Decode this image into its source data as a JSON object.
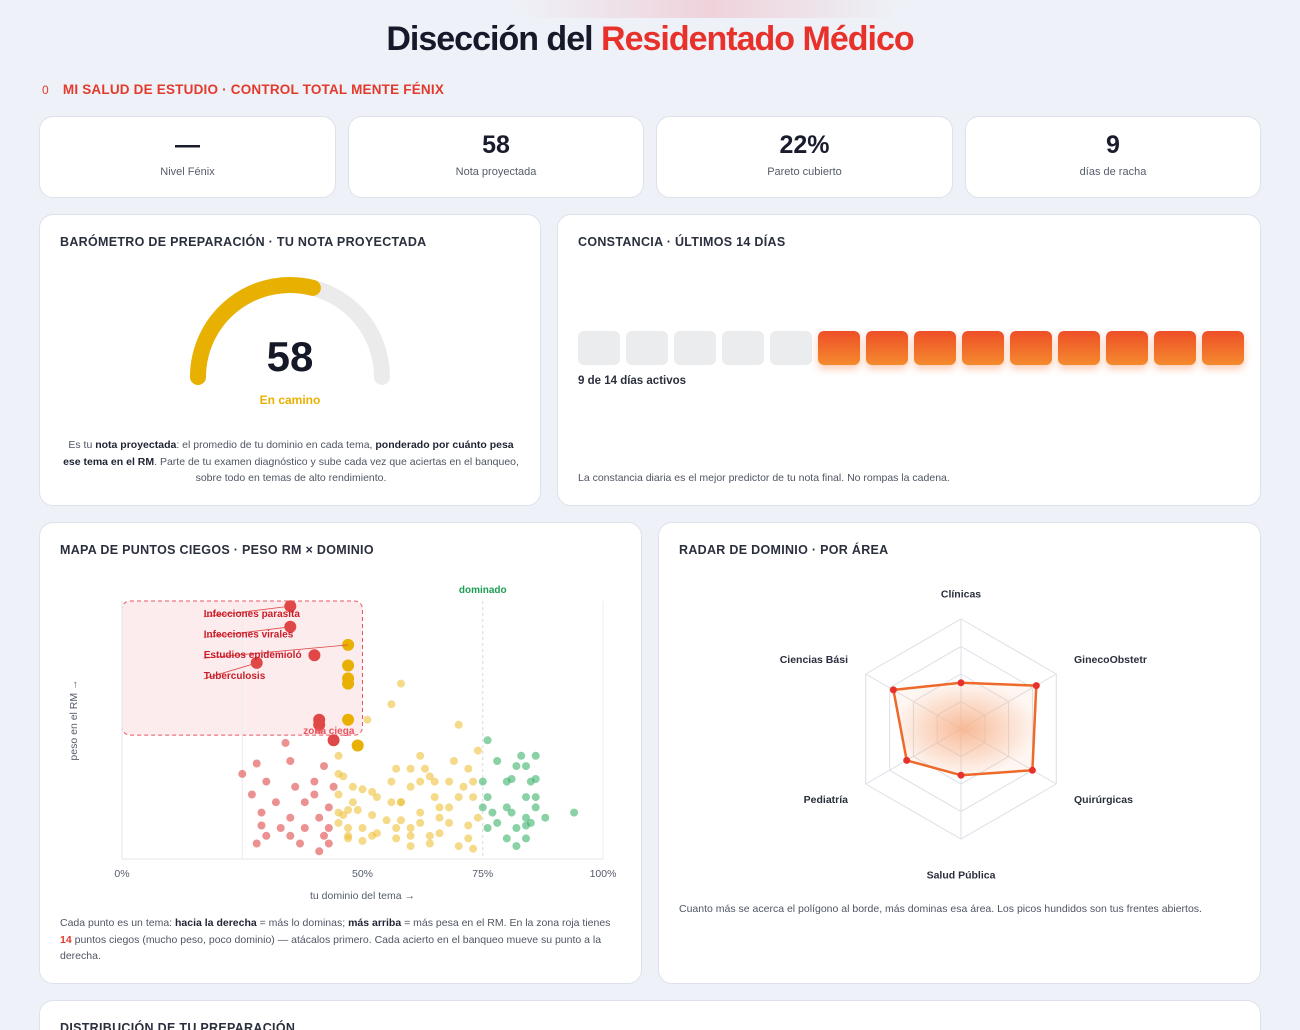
{
  "header": {
    "title_main": "Disección del",
    "title_accent": "Residentado Médico"
  },
  "subheader": {
    "badge": "0",
    "text": "MI SALUD DE ESTUDIO · CONTROL TOTAL MENTE FÉNIX"
  },
  "stats": [
    {
      "value": "—",
      "label": "Nivel Fénix"
    },
    {
      "value": "58",
      "label": "Nota proyectada"
    },
    {
      "value": "22%",
      "label": "Pareto cubierto"
    },
    {
      "value": "9",
      "label": "días de racha"
    }
  ],
  "barometer": {
    "title": "BARÓMETRO DE PREPARACIÓN · TU NOTA PROYECTADA",
    "value": "58",
    "gauge_fraction": 0.58,
    "status": "En camino",
    "desc_1": "Es tu ",
    "desc_b1": "nota proyectada",
    "desc_2": ": el promedio de tu dominio en cada tema, ",
    "desc_b2": "ponderado por cuánto pesa ese tema en el RM",
    "desc_3": ". Parte de tu examen diagnóstico y sube cada vez que aciertas en el banqueo, sobre todo en temas de alto rendimiento.",
    "colors": {
      "gauge": "#e8b000",
      "track": "#ebebeb"
    }
  },
  "constancy": {
    "title": "CONSTANCIA · ÚLTIMOS 14 DÍAS",
    "days": [
      0,
      0,
      0,
      0,
      0,
      1,
      1,
      1,
      1,
      1,
      1,
      1,
      1,
      1
    ],
    "active_text": "9 de 14 días activos",
    "footer": "La constancia diaria es el mejor predictor de tu nota final. No rompas la cadena."
  },
  "blindspots": {
    "title": "MAPA DE PUNTOS CIEGOS · PESO RM × DOMINIO",
    "dominated_label": "dominado",
    "zone_label": "zona ciega",
    "desc_1": "Cada punto es un tema: ",
    "desc_b1": "hacia la derecha",
    "desc_2": " = más lo dominas; ",
    "desc_b2": "más arriba",
    "desc_3": " = más pesa en el RM. En la zona roja tienes ",
    "desc_count": "14",
    "desc_4": " puntos ciegos (mucho peso, poco dominio) — atácalos primero. Cada acierto en el banqueo mueve su punto a la derecha.",
    "chart_data": {
      "type": "scatter",
      "xlabel": "tu dominio del tema →",
      "ylabel": "peso en el RM →",
      "xlim": [
        0,
        100
      ],
      "x_ticks": [
        "0%",
        "50%",
        "75%",
        "100%"
      ],
      "x_tick_values": [
        0,
        50,
        75,
        100
      ],
      "annotations": [
        "Infecciones parasita",
        "Infecciones virales",
        "Estudios epidemioló",
        "Tuberculosis"
      ],
      "colors": {
        "low": "#e04848",
        "mid": "#efc13a",
        "high": "#3cb46a",
        "zone": "#e85560"
      },
      "highlighted": [
        [
          35,
          98
        ],
        [
          35,
          90
        ],
        [
          47,
          83
        ],
        [
          40,
          79
        ],
        [
          28,
          76
        ],
        [
          47,
          75
        ],
        [
          47,
          70
        ],
        [
          47,
          68
        ],
        [
          41,
          54
        ],
        [
          41,
          52
        ],
        [
          47,
          54
        ],
        [
          44,
          46
        ],
        [
          49,
          44
        ]
      ],
      "points": [
        [
          58,
          68
        ],
        [
          56,
          60
        ],
        [
          51,
          54
        ],
        [
          70,
          52
        ],
        [
          76,
          46
        ],
        [
          74,
          42
        ],
        [
          62,
          40
        ],
        [
          83,
          40
        ],
        [
          86,
          40
        ],
        [
          69,
          38
        ],
        [
          78,
          38
        ],
        [
          82,
          36
        ],
        [
          84,
          36
        ],
        [
          57,
          35
        ],
        [
          60,
          35
        ],
        [
          63,
          35
        ],
        [
          72,
          35
        ],
        [
          64,
          32
        ],
        [
          65,
          30
        ],
        [
          68,
          30
        ],
        [
          62,
          30
        ],
        [
          56,
          30
        ],
        [
          81,
          31
        ],
        [
          86,
          31
        ],
        [
          73,
          30
        ],
        [
          75,
          30
        ],
        [
          80,
          30
        ],
        [
          85,
          30
        ],
        [
          60,
          28
        ],
        [
          71,
          28
        ],
        [
          50,
          27
        ],
        [
          52,
          26
        ],
        [
          53,
          24
        ],
        [
          56,
          22
        ],
        [
          58,
          22
        ],
        [
          65,
          24
        ],
        [
          70,
          24
        ],
        [
          73,
          24
        ],
        [
          76,
          24
        ],
        [
          84,
          24
        ],
        [
          86,
          24
        ],
        [
          48,
          22
        ],
        [
          58,
          22
        ],
        [
          66,
          20
        ],
        [
          68,
          20
        ],
        [
          75,
          20
        ],
        [
          80,
          20
        ],
        [
          86,
          20
        ],
        [
          47,
          19
        ],
        [
          49,
          19
        ],
        [
          62,
          18
        ],
        [
          66,
          16
        ],
        [
          74,
          16
        ],
        [
          77,
          18
        ],
        [
          81,
          18
        ],
        [
          84,
          16
        ],
        [
          88,
          16
        ],
        [
          94,
          18
        ],
        [
          46,
          17
        ],
        [
          52,
          17
        ],
        [
          55,
          15
        ],
        [
          58,
          15
        ],
        [
          62,
          14
        ],
        [
          68,
          14
        ],
        [
          72,
          13
        ],
        [
          78,
          14
        ],
        [
          84,
          13
        ],
        [
          85,
          14
        ],
        [
          47,
          12
        ],
        [
          50,
          12
        ],
        [
          53,
          10
        ],
        [
          57,
          12
        ],
        [
          60,
          12
        ],
        [
          66,
          10
        ],
        [
          76,
          12
        ],
        [
          82,
          12
        ],
        [
          47,
          9
        ],
        [
          52,
          9
        ],
        [
          57,
          8
        ],
        [
          60,
          9
        ],
        [
          64,
          9
        ],
        [
          72,
          8
        ],
        [
          80,
          8
        ],
        [
          84,
          8
        ],
        [
          50,
          7
        ],
        [
          60,
          5
        ],
        [
          64,
          6
        ],
        [
          70,
          5
        ],
        [
          73,
          4
        ],
        [
          82,
          5
        ],
        [
          34,
          45
        ],
        [
          35,
          38
        ],
        [
          28,
          37
        ],
        [
          42,
          36
        ],
        [
          25,
          33
        ],
        [
          30,
          30
        ],
        [
          40,
          30
        ],
        [
          36,
          28
        ],
        [
          44,
          28
        ],
        [
          27,
          25
        ],
        [
          32,
          22
        ],
        [
          38,
          22
        ],
        [
          40,
          25
        ],
        [
          43,
          20
        ],
        [
          29,
          18
        ],
        [
          35,
          16
        ],
        [
          41,
          16
        ],
        [
          29,
          13
        ],
        [
          33,
          12
        ],
        [
          38,
          12
        ],
        [
          43,
          12
        ],
        [
          30,
          9
        ],
        [
          35,
          9
        ],
        [
          42,
          9
        ],
        [
          37,
          6
        ],
        [
          43,
          6
        ],
        [
          28,
          6
        ],
        [
          41,
          3
        ],
        [
          47,
          8
        ],
        [
          41,
          50
        ],
        [
          45,
          40
        ],
        [
          45,
          33
        ],
        [
          45,
          25
        ],
        [
          45,
          18
        ],
        [
          45,
          14
        ],
        [
          48,
          28
        ],
        [
          46,
          32
        ]
      ]
    }
  },
  "radar": {
    "title": "RADAR DE DOMINIO · POR ÁREA",
    "footer": "Cuanto más se acerca el polígono al borde, más dominas esa área. Los picos hundidos son tus frentes abiertos.",
    "chart_data": {
      "type": "radar",
      "categories": [
        "Clínicas",
        "GinecoObstetr",
        "Quirúrgicas",
        "Salud Pública",
        "Pediatría",
        "Ciencias Bási"
      ],
      "values": [
        0.42,
        0.79,
        0.75,
        0.42,
        0.57,
        0.71
      ],
      "max": 1,
      "colors": {
        "stroke": "#ee6a2a",
        "fill": "#f7b38c",
        "grid": "#dcdfe5"
      }
    }
  },
  "distribution": {
    "title": "DISTRIBUCIÓN DE TU PREPARACIÓN"
  }
}
